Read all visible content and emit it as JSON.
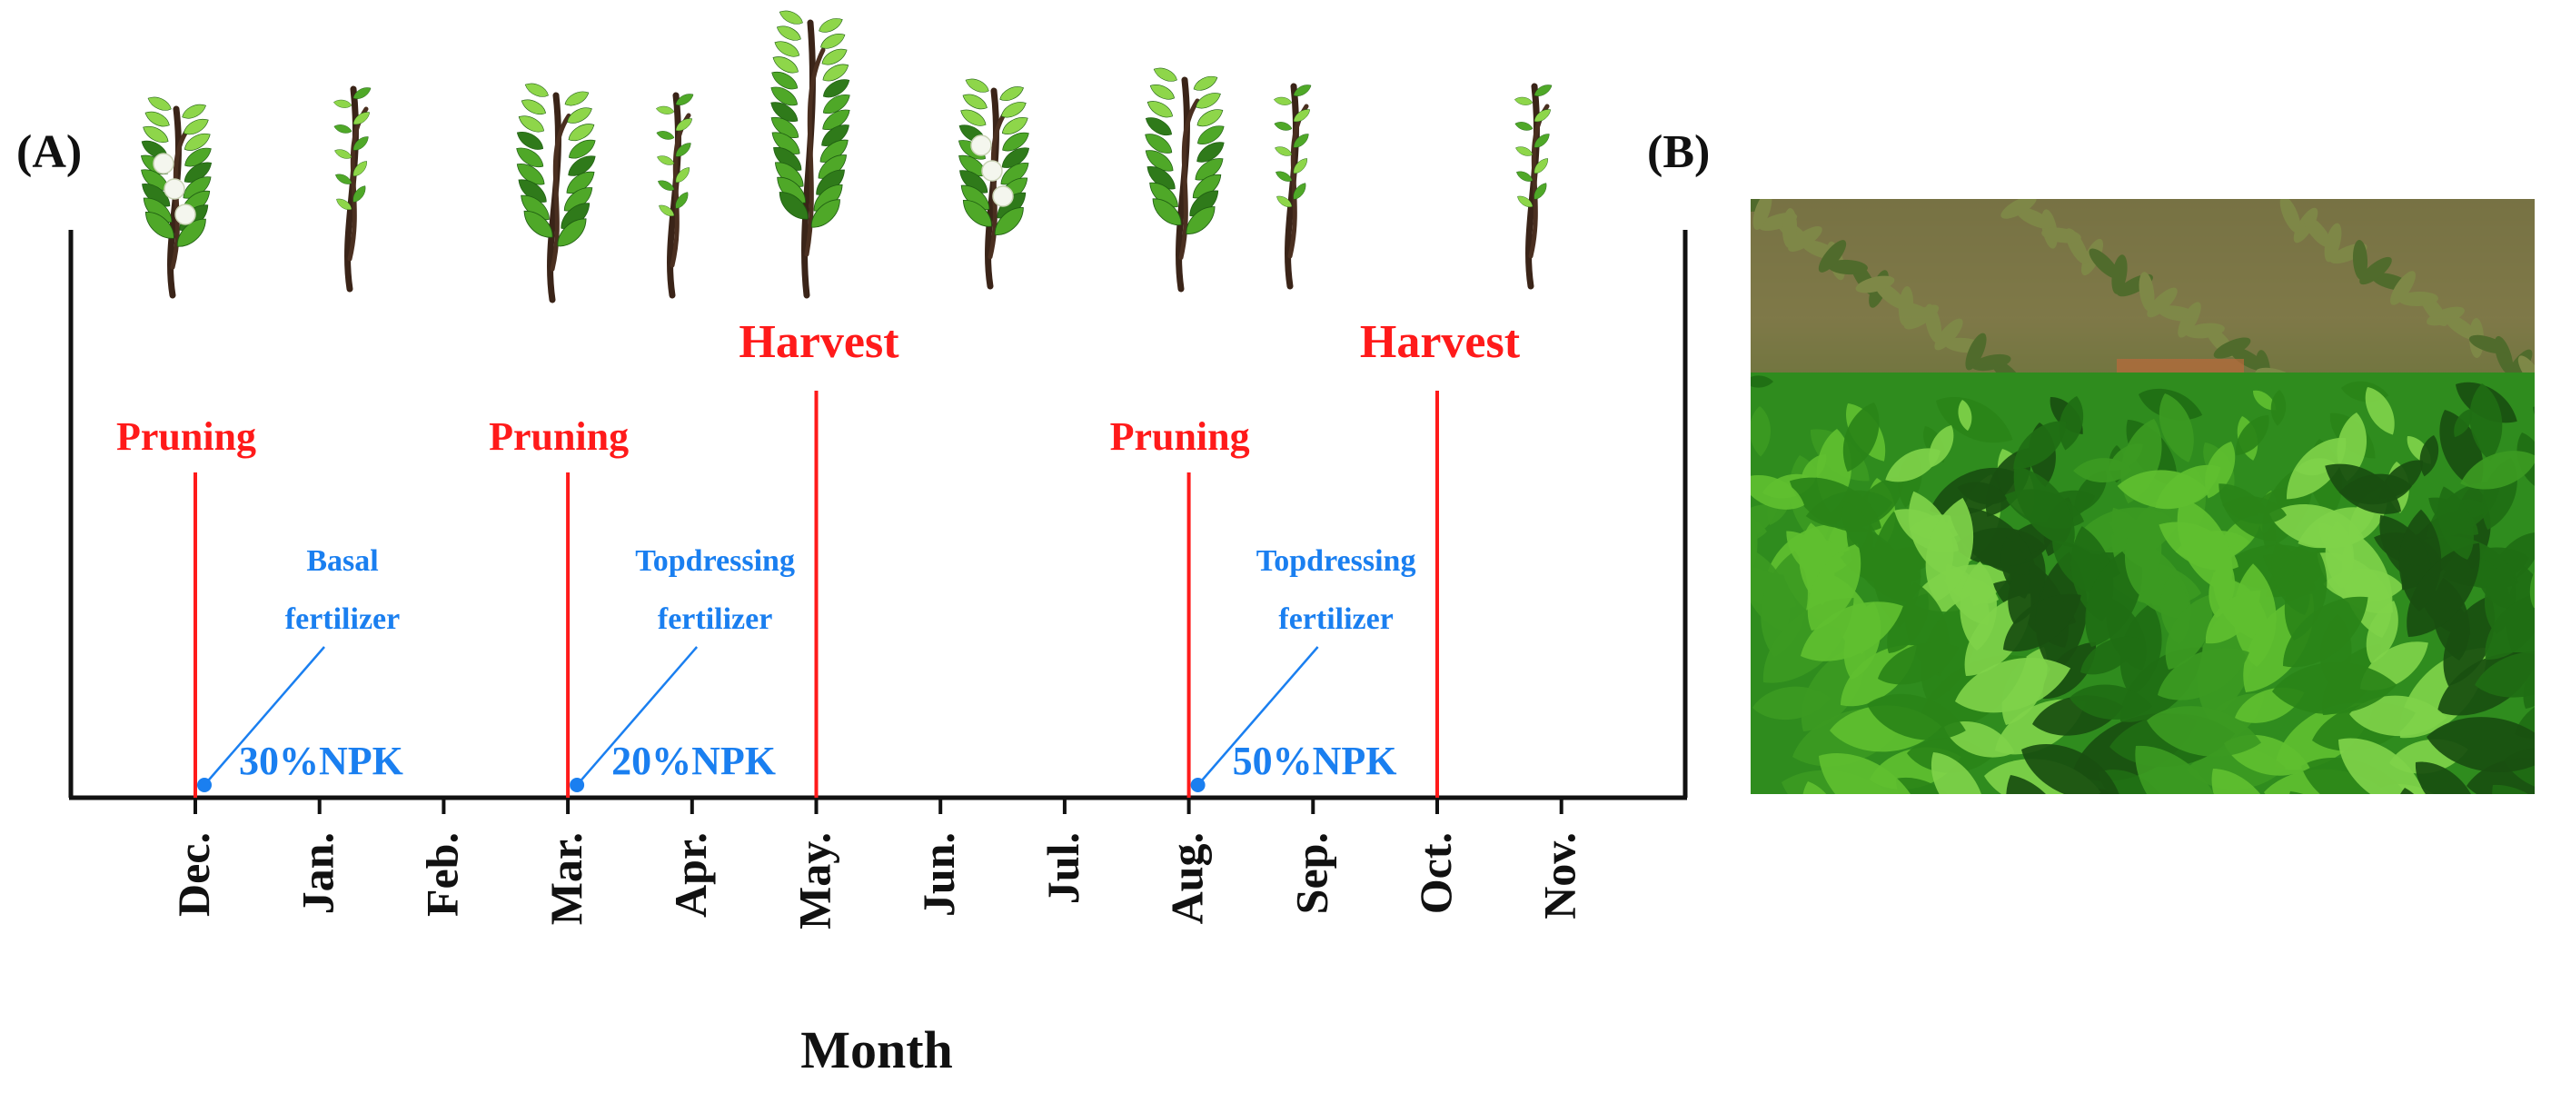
{
  "panel_a": {
    "label": "(A)",
    "x_axis_title": "Month",
    "months": [
      "Dec.",
      "Jan.",
      "Feb.",
      "Mar.",
      "Apr.",
      "May.",
      "Jun.",
      "Jul.",
      "Aug.",
      "Sep.",
      "Oct.",
      "Nov."
    ],
    "events": [
      {
        "type": "pruning",
        "label": "Pruning",
        "month": "Dec."
      },
      {
        "type": "pruning",
        "label": "Pruning",
        "month": "Mar."
      },
      {
        "type": "harvest",
        "label": "Harvest",
        "month": "May."
      },
      {
        "type": "pruning",
        "label": "Pruning",
        "month": "Aug."
      },
      {
        "type": "harvest",
        "label": "Harvest",
        "month": "Oct."
      }
    ],
    "fertilizer": [
      {
        "line1": "Basal",
        "line2": "fertilizer",
        "amount": "30%NPK",
        "month": "Dec."
      },
      {
        "line1": "Topdressing",
        "line2": "fertilizer",
        "amount": "20%NPK",
        "month": "Mar."
      },
      {
        "line1": "Topdressing",
        "line2": "fertilizer",
        "amount": "50%NPK",
        "month": "Aug."
      }
    ],
    "plant_illustrations": [
      "flowering-bush",
      "bare-stem",
      "leafy-bush",
      "bare-stem",
      "full-leafy-bush",
      "flowering-bush",
      "leafy-bush",
      "bare-stem",
      "bare-stem"
    ]
  },
  "panel_b": {
    "label": "(B)",
    "photo_subject": "tea plantation"
  },
  "colors": {
    "event_red": "#ff1a1a",
    "fertilizer_blue": "#1a7ff0",
    "axis_black": "#111111"
  }
}
